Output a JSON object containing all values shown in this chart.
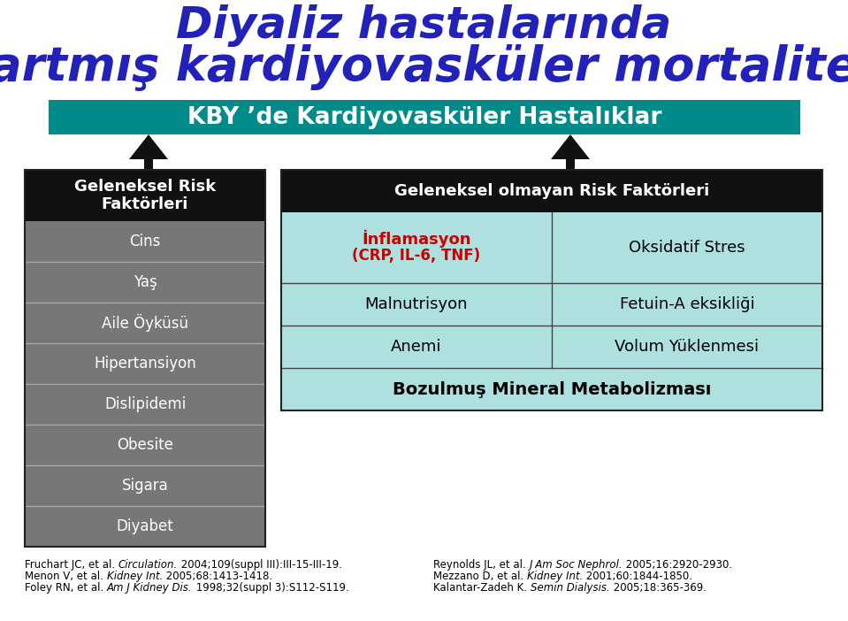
{
  "title_line1": "Diyaliz hastalarında",
  "title_line2": "artmış kardiyovasküler mortalite",
  "title_color": "#2222bb",
  "title_fontsize1": 36,
  "title_fontsize2": 38,
  "teal_banner_text": "KBY ’de Kardiyovasküler Hastalıklar",
  "teal_banner_color": "#008B8B",
  "teal_banner_text_color": "#ffffff",
  "teal_banner_fontsize": 19,
  "left_box_header": "Geleneksel Risk\nFaktörleri",
  "left_box_header_bg": "#111111",
  "left_box_header_color": "#ffffff",
  "left_box_rows": [
    "Cins",
    "Yaş",
    "Aile Öyküsü",
    "Hipertansiyon",
    "Dislipidemi",
    "Obesite",
    "Sigara",
    "Diyabet"
  ],
  "left_box_row_bg": "#777777",
  "left_box_row_color": "#ffffff",
  "right_box_header": "Geleneksel olmayan Risk Faktörleri",
  "right_box_header_bg": "#111111",
  "right_box_header_color": "#ffffff",
  "cell_bg": "#aee0e0",
  "cell_border_color": "#555555",
  "inflamasyon_line1": "İnflamasyon",
  "inflamasyon_line2": "(CRP, IL-6, TNF)",
  "inflamasyon_color": "#cc0000",
  "oksidatif_text": "Oksidatif Stres",
  "oksidatif_color": "#000000",
  "malnutrisyon_text": "Malnutrisyon",
  "malnutrisyon_color": "#000000",
  "fetuina_text": "Fetuin-A eksikliği",
  "fetuina_color": "#000000",
  "anemi_text": "Anemi",
  "anemi_color": "#000000",
  "volum_text": "Volum Yüklenmesi",
  "volum_color": "#000000",
  "bozulmus_text": "Bozulmuş Mineral Metabolizması",
  "bozulmus_color": "#000000",
  "footer_left": [
    [
      "Fruchart JC, et al. ",
      "Circulation.",
      " 2004;109(suppl III):III-15-III-19."
    ],
    [
      "Menon V, et al. ",
      "Kidney Int.",
      " 2005;68:1413-1418."
    ],
    [
      "Foley RN, et al. ",
      "Am J Kidney Dis.",
      " 1998;32(suppl 3):S112-S119."
    ]
  ],
  "footer_right": [
    [
      "Reynolds JL, et al. ",
      "J Am Soc Nephrol.",
      " 2005;16:2920-2930."
    ],
    [
      "Mezzano D, et al. ",
      "Kidney Int.",
      " 2001;60:1844-1850."
    ],
    [
      "Kalantar-Zadeh K. ",
      "Semin Dialysis.",
      " 2005;18:365-369."
    ]
  ],
  "footer_fontsize": 8.5,
  "arrow_color": "#111111",
  "bg_color": "#ffffff",
  "fig_w": 9.59,
  "fig_h": 7.02,
  "dpi": 100
}
